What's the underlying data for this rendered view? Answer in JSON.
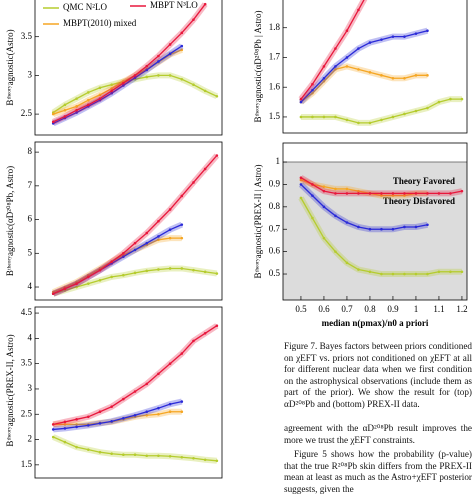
{
  "chart_data": [
    {
      "type": "line",
      "ylabel": "Bᵗʰᵉᵒʳʸagnostic(Astro)",
      "x": [
        0.5,
        0.55,
        0.6,
        0.65,
        0.7,
        0.75,
        0.8,
        0.85,
        0.9,
        0.95,
        1.0,
        1.05,
        1.1,
        1.15,
        1.2
      ],
      "xlim": [
        0.422,
        1.222
      ],
      "ylim": [
        2.23,
        4.0
      ],
      "yticks": [
        2.5,
        3.0,
        3.5
      ],
      "series": [
        {
          "name": "QMC N²LO",
          "color": "#b5cc2e",
          "values": [
            2.52,
            2.62,
            2.7,
            2.78,
            2.84,
            2.88,
            2.92,
            2.95,
            2.98,
            3.0,
            3.0,
            2.95,
            2.88,
            2.8,
            2.73
          ]
        },
        {
          "name": "MBPT(2010) mixed",
          "color": "#f5a623",
          "values": [
            2.5,
            2.55,
            2.6,
            2.68,
            2.75,
            2.83,
            2.92,
            3.0,
            3.08,
            3.17,
            3.27,
            3.33,
            null,
            null,
            null
          ]
        },
        {
          "color": "#2a2ad8",
          "values": [
            2.38,
            2.45,
            2.52,
            2.6,
            2.68,
            2.77,
            2.87,
            2.97,
            3.07,
            3.18,
            3.28,
            3.38,
            null,
            null,
            null
          ]
        },
        {
          "name": "MBPT N³LO",
          "color": "#e8173c",
          "values": [
            2.4,
            2.47,
            2.55,
            2.62,
            2.7,
            2.8,
            2.9,
            3.0,
            3.12,
            3.25,
            3.4,
            3.55,
            3.72,
            3.92,
            null
          ]
        }
      ]
    },
    {
      "type": "line",
      "ylabel": "Bᵗʰᵉᵒʳʸagnostic(αD²⁰⁸Pb, Astro)",
      "x": [
        0.5,
        0.55,
        0.6,
        0.65,
        0.7,
        0.75,
        0.8,
        0.85,
        0.9,
        0.95,
        1.0,
        1.05,
        1.1,
        1.15,
        1.2
      ],
      "xlim": [
        0.422,
        1.222
      ],
      "ylim": [
        3.615,
        8.3
      ],
      "yticks": [
        4,
        5,
        6,
        7,
        8
      ],
      "series": [
        {
          "color": "#b5cc2e",
          "values": [
            3.8,
            3.9,
            4.0,
            4.1,
            4.2,
            4.3,
            4.35,
            4.42,
            4.48,
            4.52,
            4.55,
            4.55,
            4.5,
            4.45,
            4.4
          ]
        },
        {
          "color": "#f5a623",
          "values": [
            3.85,
            4.0,
            4.15,
            4.35,
            4.55,
            4.75,
            4.95,
            5.1,
            5.25,
            5.4,
            5.45,
            5.45,
            null,
            null,
            null
          ]
        },
        {
          "color": "#2a2ad8",
          "values": [
            3.8,
            3.95,
            4.1,
            4.3,
            4.5,
            4.7,
            4.9,
            5.1,
            5.3,
            5.5,
            5.7,
            5.85,
            null,
            null,
            null
          ]
        },
        {
          "color": "#e8173c",
          "values": [
            3.8,
            3.95,
            4.1,
            4.3,
            4.5,
            4.75,
            5.0,
            5.3,
            5.6,
            5.95,
            6.3,
            6.7,
            7.1,
            7.5,
            7.9
          ]
        }
      ]
    },
    {
      "type": "line",
      "ylabel": "Bᵗʰᵉᵒʳʸagnostic(PREX-II, Astro)",
      "x": [
        0.5,
        0.55,
        0.6,
        0.65,
        0.7,
        0.75,
        0.8,
        0.85,
        0.9,
        0.95,
        1.0,
        1.05,
        1.1,
        1.15,
        1.2
      ],
      "xlim": [
        0.422,
        1.222
      ],
      "ylim": [
        1.24,
        4.62
      ],
      "yticks": [
        1.5,
        2.0,
        2.5,
        3.0,
        3.5,
        4.0,
        4.5
      ],
      "series": [
        {
          "color": "#b5cc2e",
          "values": [
            2.05,
            1.95,
            1.85,
            1.8,
            1.75,
            1.72,
            1.7,
            1.7,
            1.68,
            1.68,
            1.67,
            1.65,
            1.63,
            1.6,
            1.58
          ]
        },
        {
          "color": "#f5a623",
          "values": [
            2.3,
            2.3,
            2.3,
            2.3,
            2.33,
            2.35,
            2.4,
            2.45,
            2.48,
            2.5,
            2.55,
            2.55,
            null,
            null,
            null
          ]
        },
        {
          "color": "#2a2ad8",
          "values": [
            2.2,
            2.22,
            2.25,
            2.28,
            2.32,
            2.36,
            2.42,
            2.48,
            2.55,
            2.62,
            2.7,
            2.75,
            null,
            null,
            null
          ]
        },
        {
          "color": "#e8173c",
          "values": [
            2.3,
            2.35,
            2.4,
            2.45,
            2.55,
            2.65,
            2.8,
            2.95,
            3.1,
            3.3,
            3.5,
            3.7,
            3.95,
            4.1,
            4.25
          ]
        }
      ]
    },
    {
      "type": "line",
      "ylabel": "Bᵗʰᵉᵒʳʸagnostic(αD²⁰⁸Pb | Astro)",
      "x": [
        0.5,
        0.55,
        0.6,
        0.65,
        0.7,
        0.75,
        0.8,
        0.85,
        0.9,
        0.95,
        1.0,
        1.05,
        1.1,
        1.15,
        1.2
      ],
      "xlim": [
        0.422,
        1.222
      ],
      "ylim": [
        1.446,
        1.9
      ],
      "yticks": [
        1.5,
        1.6,
        1.7,
        1.8
      ],
      "series": [
        {
          "color": "#b5cc2e",
          "values": [
            1.5,
            1.5,
            1.5,
            1.5,
            1.49,
            1.48,
            1.48,
            1.49,
            1.5,
            1.51,
            1.52,
            1.53,
            1.55,
            1.56,
            1.56
          ]
        },
        {
          "color": "#f5a623",
          "values": [
            1.55,
            1.58,
            1.62,
            1.66,
            1.67,
            1.66,
            1.65,
            1.64,
            1.63,
            1.63,
            1.64,
            1.64,
            null,
            null,
            null
          ]
        },
        {
          "color": "#2a2ad8",
          "values": [
            1.55,
            1.59,
            1.63,
            1.67,
            1.7,
            1.73,
            1.75,
            1.76,
            1.77,
            1.77,
            1.78,
            1.79,
            null,
            null,
            null
          ]
        },
        {
          "color": "#e8173c",
          "values": [
            1.56,
            1.61,
            1.67,
            1.73,
            1.79,
            1.86,
            1.93,
            null,
            null,
            null,
            null,
            null,
            null,
            null,
            null
          ]
        }
      ]
    },
    {
      "type": "line",
      "ylabel": "Bᵗʰᵉᵒʳʸagnostic(PREX-II | Astro)",
      "xlabel": "median n(pmax)/n0 a priori",
      "annotations": [
        "Theory Favored",
        "Theory Disfavored"
      ],
      "x": [
        0.5,
        0.55,
        0.6,
        0.65,
        0.7,
        0.75,
        0.8,
        0.85,
        0.9,
        0.95,
        1.0,
        1.05,
        1.1,
        1.15,
        1.2
      ],
      "xlim": [
        0.422,
        1.222
      ],
      "ylim": [
        0.384,
        1.085
      ],
      "xticks": [
        0.5,
        0.6,
        0.7,
        0.8,
        0.9,
        1.0,
        1.1,
        1.2
      ],
      "yticks": [
        0.5,
        0.6,
        0.7,
        0.8,
        0.9,
        1.0
      ],
      "series": [
        {
          "color": "#b5cc2e",
          "values": [
            0.84,
            0.75,
            0.66,
            0.6,
            0.55,
            0.52,
            0.51,
            0.5,
            0.5,
            0.5,
            0.5,
            0.5,
            0.51,
            0.51,
            0.51
          ]
        },
        {
          "color": "#f5a623",
          "values": [
            0.92,
            0.9,
            0.89,
            0.88,
            0.88,
            0.87,
            0.86,
            0.85,
            0.85,
            0.85,
            0.86,
            0.86,
            null,
            null,
            null
          ]
        },
        {
          "color": "#2a2ad8",
          "values": [
            0.9,
            0.85,
            0.8,
            0.76,
            0.73,
            0.71,
            0.7,
            0.7,
            0.7,
            0.71,
            0.71,
            0.72,
            null,
            null,
            null
          ]
        },
        {
          "color": "#e8173c",
          "values": [
            0.93,
            0.9,
            0.87,
            0.86,
            0.86,
            0.86,
            0.86,
            0.86,
            0.86,
            0.86,
            0.86,
            0.86,
            0.86,
            0.86,
            0.87
          ]
        }
      ]
    }
  ],
  "caption": "Figure 7.    Bayes factors between priors conditioned on χEFT vs. priors not conditioned on χEFT at all for different nuclear data when we first condition on the astrophysical observations (include them as part of the prior). We show the result for (top) αD²⁰⁸Pb and (bottom) PREX-II data.",
  "body": [
    "agreement with the αD²⁰⁸Pb result improves the more we trust the χEFT constraints.",
    "Figure 5 shows how the probability (p-value) that the true R²⁰⁸Pb skin differs from the PREX-II mean at least as much as the Astro+χEFT posterior suggests, given the"
  ]
}
